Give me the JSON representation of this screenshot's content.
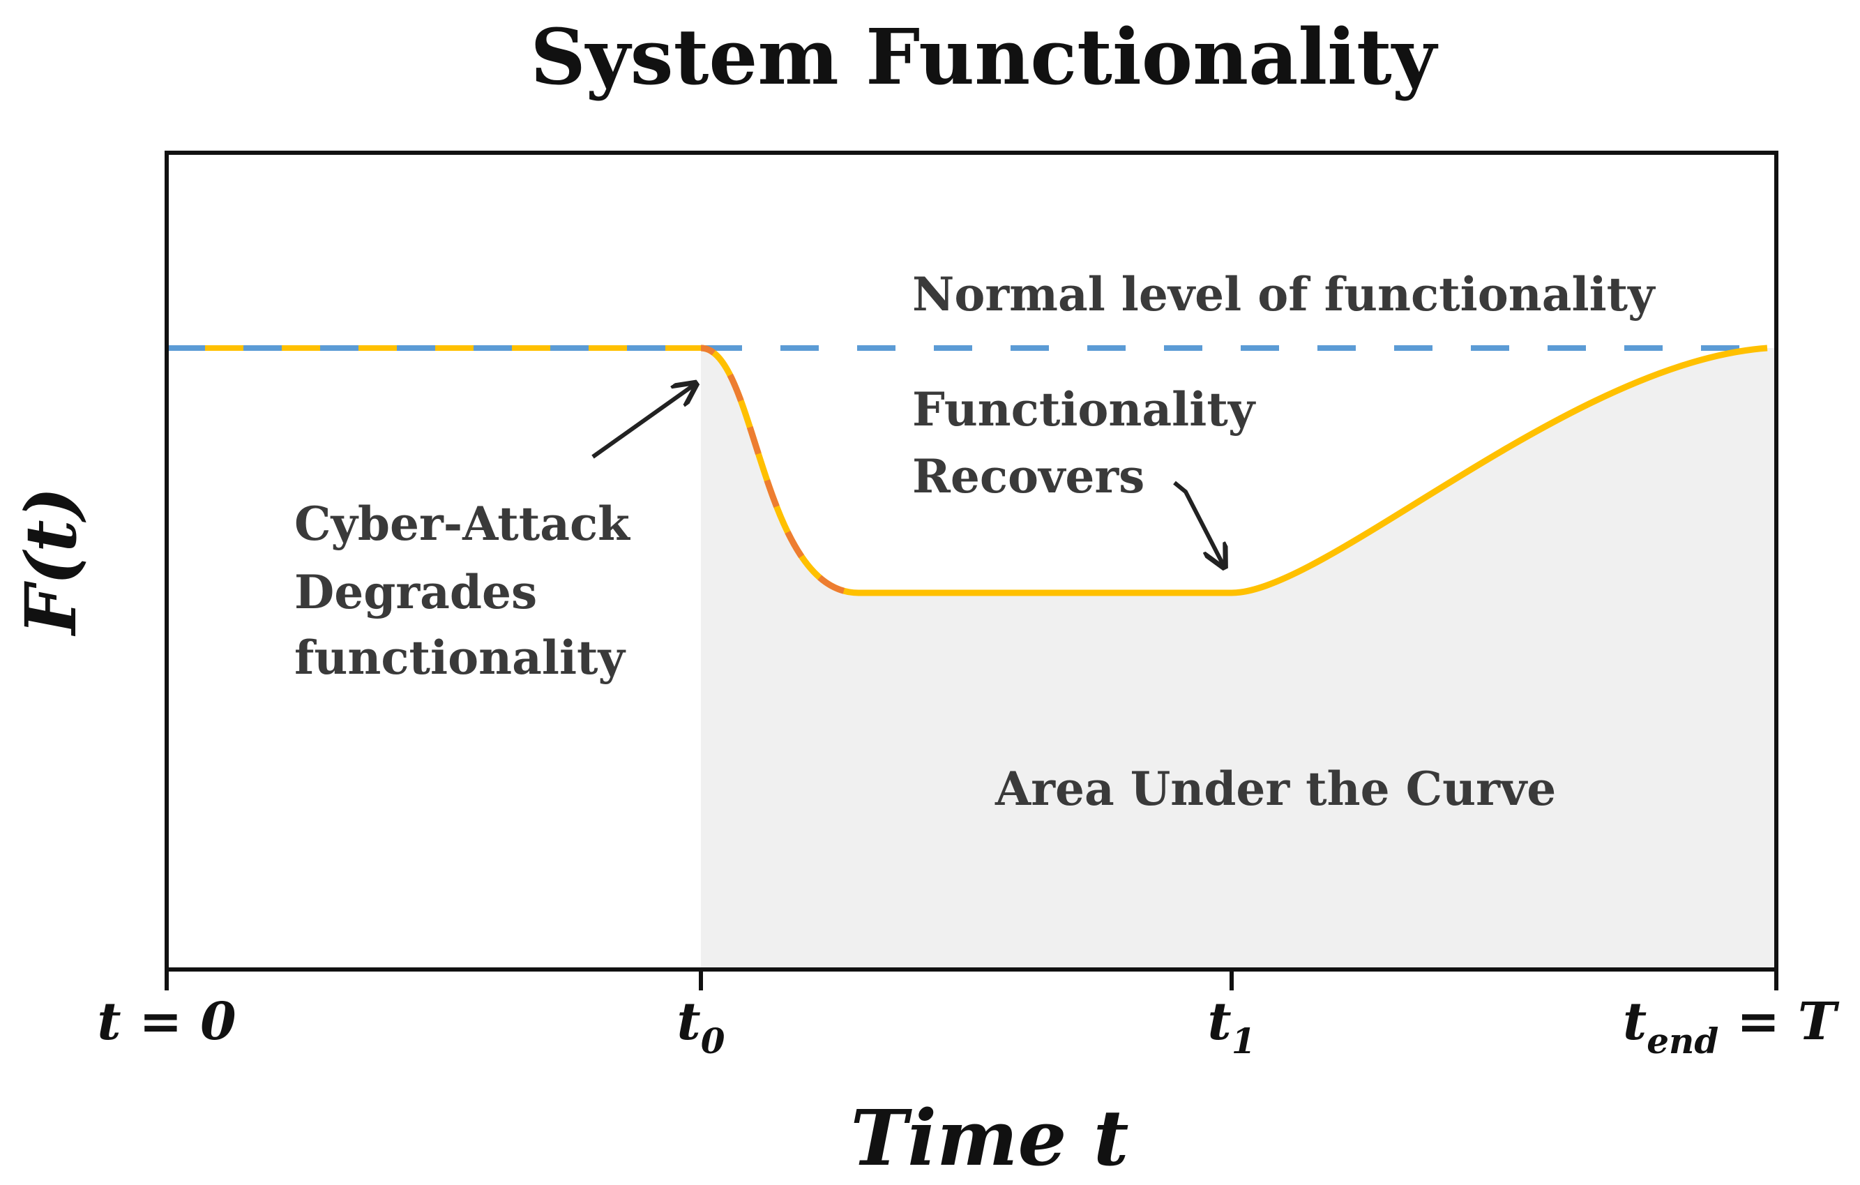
{
  "title": "System Functionality",
  "y_axis_label": "F(t)",
  "x_axis_label": "Time t",
  "x_ticks": [
    {
      "text": "t = 0"
    },
    {
      "base": "t",
      "sub": "0"
    },
    {
      "base": "t",
      "sub": "1"
    },
    {
      "base": "t",
      "sub": "end",
      "suffix": " = T"
    }
  ],
  "annotations": {
    "normal_level": "Normal level of functionality",
    "attack": [
      "Cyber-Attack",
      "Degrades",
      "functionality"
    ],
    "recovers": [
      "Functionality",
      "Recovers"
    ],
    "area": "Area Under the Curve"
  }
}
